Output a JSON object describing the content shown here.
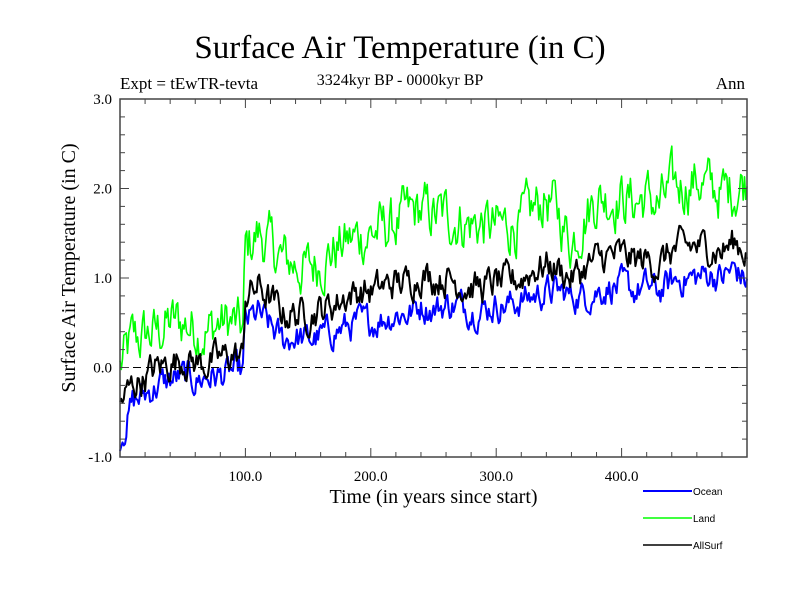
{
  "header": {
    "title": "Surface Air Temperature (in C)",
    "subtitle": "3324kyr BP - 0000kyr BP",
    "experiment": "Expt = tEwTR-tevta",
    "season": "Ann"
  },
  "chart_data": {
    "type": "line",
    "title": "Surface Air Temperature (in C)",
    "subtitle": "3324kyr BP - 0000kyr BP",
    "xlabel": "Time (in years since start)",
    "ylabel": "Surface Air Temperature (in C)",
    "xlim": [
      0,
      500
    ],
    "ylim": [
      -1.0,
      3.0
    ],
    "xticks": [
      100,
      200,
      300,
      400
    ],
    "xtick_labels": [
      "100.0",
      "200.0",
      "300.0",
      "400.0"
    ],
    "yticks": [
      -1.0,
      0.0,
      1.0,
      2.0,
      3.0
    ],
    "ytick_labels": [
      "-1.0",
      "0.0",
      "1.0",
      "2.0",
      "3.0"
    ],
    "x_minor_step": 20,
    "y_minor_step": 0.2,
    "reference_line": {
      "y": 0.0,
      "style": "dashed"
    },
    "grid": false,
    "legend_position": "bottom-right-outside",
    "x": [
      0,
      10,
      20,
      30,
      40,
      50,
      60,
      70,
      80,
      90,
      98,
      100,
      110,
      120,
      130,
      140,
      150,
      160,
      170,
      180,
      190,
      200,
      210,
      220,
      230,
      240,
      250,
      260,
      270,
      280,
      290,
      300,
      310,
      320,
      330,
      340,
      350,
      360,
      370,
      380,
      390,
      400,
      410,
      420,
      430,
      440,
      450,
      460,
      470,
      480,
      490,
      500
    ],
    "series": [
      {
        "name": "Ocean",
        "color": "#0000ff",
        "values": [
          -0.8,
          -0.4,
          -0.3,
          -0.2,
          -0.15,
          -0.1,
          -0.15,
          -0.1,
          -0.1,
          -0.05,
          -0.05,
          0.5,
          0.6,
          0.45,
          0.3,
          0.35,
          0.3,
          0.35,
          0.4,
          0.45,
          0.5,
          0.5,
          0.55,
          0.6,
          0.6,
          0.7,
          0.65,
          0.7,
          0.7,
          0.65,
          0.65,
          0.7,
          0.7,
          0.75,
          0.8,
          0.85,
          0.85,
          0.8,
          0.8,
          0.85,
          0.9,
          0.9,
          0.85,
          0.9,
          0.85,
          0.95,
          1.0,
          1.0,
          1.05,
          1.0,
          1.1,
          0.95
        ]
      },
      {
        "name": "Land",
        "color": "#00ff00",
        "values": [
          0.0,
          0.3,
          0.35,
          0.4,
          0.5,
          0.5,
          0.45,
          0.4,
          0.5,
          0.5,
          0.4,
          1.3,
          1.5,
          1.35,
          1.2,
          1.15,
          1.1,
          1.2,
          1.3,
          1.4,
          1.45,
          1.5,
          1.55,
          1.6,
          1.7,
          1.75,
          1.7,
          1.7,
          1.65,
          1.6,
          1.6,
          1.55,
          1.6,
          1.6,
          1.75,
          1.9,
          1.7,
          1.4,
          1.7,
          1.9,
          1.9,
          1.9,
          1.85,
          1.9,
          1.8,
          2.0,
          2.05,
          2.1,
          2.0,
          1.95,
          2.0,
          2.1
        ]
      },
      {
        "name": "AllSurf",
        "color": "#000000",
        "values": [
          -0.4,
          -0.2,
          -0.1,
          0.0,
          0.05,
          0.1,
          0.05,
          0.05,
          0.1,
          0.15,
          0.1,
          0.8,
          0.9,
          0.75,
          0.6,
          0.6,
          0.6,
          0.65,
          0.7,
          0.8,
          0.85,
          0.85,
          0.9,
          0.95,
          0.95,
          1.05,
          1.0,
          1.0,
          0.95,
          0.9,
          0.9,
          0.95,
          0.95,
          1.0,
          1.1,
          1.15,
          1.1,
          1.0,
          1.1,
          1.2,
          1.25,
          1.25,
          1.2,
          1.2,
          1.15,
          1.3,
          1.35,
          1.35,
          1.35,
          1.3,
          1.4,
          1.3
        ]
      }
    ]
  },
  "legend": {
    "items": [
      {
        "label": "Ocean",
        "color": "#0000ff"
      },
      {
        "label": "Land",
        "color": "#00ff00"
      },
      {
        "label": "AllSurf",
        "color": "#000000"
      }
    ]
  }
}
